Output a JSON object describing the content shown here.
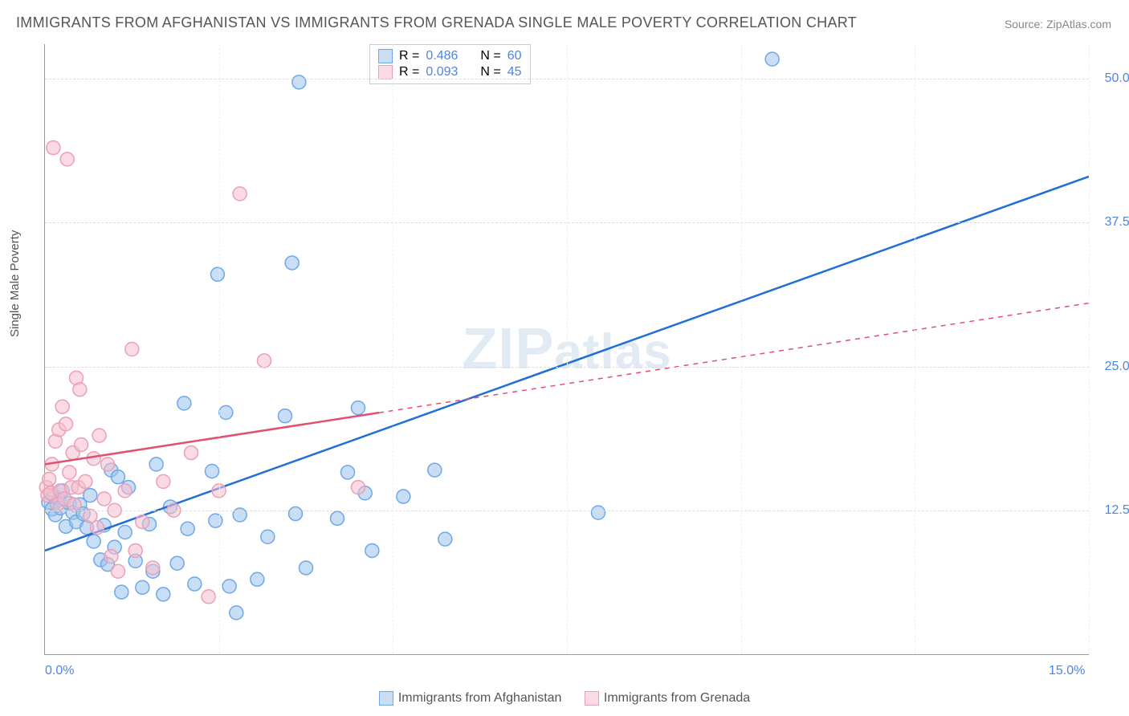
{
  "title": "IMMIGRANTS FROM AFGHANISTAN VS IMMIGRANTS FROM GRENADA SINGLE MALE POVERTY CORRELATION CHART",
  "source": "Source: ZipAtlas.com",
  "watermark": "ZIPatlas",
  "ylabel": "Single Male Poverty",
  "chart": {
    "type": "scatter",
    "xlim": [
      0,
      15
    ],
    "ylim": [
      0,
      53
    ],
    "xticks": [
      {
        "pos": 0,
        "label": "0.0%"
      },
      {
        "pos": 15,
        "label": "15.0%"
      }
    ],
    "xgrid": [
      2.5,
      5,
      7.5,
      10,
      12.5,
      15
    ],
    "yticks": [
      {
        "pos": 12.5,
        "label": "12.5%"
      },
      {
        "pos": 25,
        "label": "25.0%"
      },
      {
        "pos": 37.5,
        "label": "37.5%"
      },
      {
        "pos": 50,
        "label": "50.0%"
      }
    ],
    "tick_color": "#4a86e8",
    "grid_color": "#dddddd",
    "background_color": "#ffffff",
    "series": [
      {
        "key": "afghanistan",
        "label": "Immigrants from Afghanistan",
        "color_stroke": "#6fa8e8",
        "color_fill": "rgba(155,194,236,0.55)",
        "trend_color": "#1f6fd6",
        "trend_dash": "",
        "trend": {
          "x1": 0,
          "y1": 9,
          "x2": 15,
          "y2": 41.5,
          "solid_to_x": 15
        },
        "R": "0.486",
        "N": "60",
        "points": [
          [
            0.05,
            13.2
          ],
          [
            0.1,
            12.6
          ],
          [
            0.12,
            13.8
          ],
          [
            0.15,
            12.1
          ],
          [
            0.2,
            13.4
          ],
          [
            0.22,
            12.7
          ],
          [
            0.25,
            14.2
          ],
          [
            0.3,
            11.1
          ],
          [
            0.35,
            13.1
          ],
          [
            0.4,
            12.3
          ],
          [
            0.45,
            11.5
          ],
          [
            0.5,
            13.0
          ],
          [
            0.55,
            12.2
          ],
          [
            0.6,
            11.0
          ],
          [
            0.65,
            13.8
          ],
          [
            0.7,
            9.8
          ],
          [
            0.8,
            8.2
          ],
          [
            0.85,
            11.2
          ],
          [
            0.9,
            7.8
          ],
          [
            0.95,
            16.0
          ],
          [
            1.0,
            9.3
          ],
          [
            1.05,
            15.4
          ],
          [
            1.1,
            5.4
          ],
          [
            1.15,
            10.6
          ],
          [
            1.2,
            14.5
          ],
          [
            1.3,
            8.1
          ],
          [
            1.4,
            5.8
          ],
          [
            1.5,
            11.3
          ],
          [
            1.55,
            7.2
          ],
          [
            1.6,
            16.5
          ],
          [
            1.7,
            5.2
          ],
          [
            1.8,
            12.8
          ],
          [
            1.9,
            7.9
          ],
          [
            2.0,
            21.8
          ],
          [
            2.05,
            10.9
          ],
          [
            2.15,
            6.1
          ],
          [
            2.4,
            15.9
          ],
          [
            2.45,
            11.6
          ],
          [
            2.48,
            33.0
          ],
          [
            2.6,
            21.0
          ],
          [
            2.65,
            5.9
          ],
          [
            2.75,
            3.6
          ],
          [
            2.8,
            12.1
          ],
          [
            3.05,
            6.5
          ],
          [
            3.2,
            10.2
          ],
          [
            3.45,
            20.7
          ],
          [
            3.55,
            34.0
          ],
          [
            3.6,
            12.2
          ],
          [
            3.65,
            49.7
          ],
          [
            3.75,
            7.5
          ],
          [
            4.2,
            11.8
          ],
          [
            4.35,
            15.8
          ],
          [
            4.5,
            21.4
          ],
          [
            4.6,
            14.0
          ],
          [
            4.7,
            9.0
          ],
          [
            5.15,
            13.7
          ],
          [
            5.6,
            16.0
          ],
          [
            5.75,
            10.0
          ],
          [
            7.95,
            12.3
          ],
          [
            10.45,
            51.7
          ]
        ]
      },
      {
        "key": "grenada",
        "label": "Immigrants from Grenada",
        "color_stroke": "#eaa0b5",
        "color_fill": "rgba(245,190,205,0.55)",
        "trend_color": "#e05070",
        "trend_dash": "6 6",
        "trend": {
          "x1": 0,
          "y1": 16.5,
          "x2": 15,
          "y2": 30.5,
          "solid_to_x": 4.8
        },
        "R": "0.093",
        "N": "45",
        "points": [
          [
            0.02,
            14.5
          ],
          [
            0.04,
            13.8
          ],
          [
            0.06,
            15.2
          ],
          [
            0.08,
            14.0
          ],
          [
            0.1,
            16.5
          ],
          [
            0.12,
            44.0
          ],
          [
            0.15,
            18.5
          ],
          [
            0.18,
            13.0
          ],
          [
            0.2,
            19.5
          ],
          [
            0.22,
            14.2
          ],
          [
            0.25,
            21.5
          ],
          [
            0.28,
            13.5
          ],
          [
            0.3,
            20.0
          ],
          [
            0.32,
            43.0
          ],
          [
            0.35,
            15.8
          ],
          [
            0.38,
            14.5
          ],
          [
            0.4,
            17.5
          ],
          [
            0.42,
            13.0
          ],
          [
            0.45,
            24.0
          ],
          [
            0.48,
            14.5
          ],
          [
            0.5,
            23.0
          ],
          [
            0.52,
            18.2
          ],
          [
            0.58,
            15.0
          ],
          [
            0.65,
            12.0
          ],
          [
            0.7,
            17.0
          ],
          [
            0.75,
            11.0
          ],
          [
            0.78,
            19.0
          ],
          [
            0.85,
            13.5
          ],
          [
            0.9,
            16.5
          ],
          [
            0.95,
            8.5
          ],
          [
            1.0,
            12.5
          ],
          [
            1.05,
            7.2
          ],
          [
            1.15,
            14.2
          ],
          [
            1.25,
            26.5
          ],
          [
            1.3,
            9.0
          ],
          [
            1.4,
            11.5
          ],
          [
            1.55,
            7.5
          ],
          [
            1.7,
            15.0
          ],
          [
            1.85,
            12.5
          ],
          [
            2.1,
            17.5
          ],
          [
            2.35,
            5.0
          ],
          [
            2.5,
            14.2
          ],
          [
            2.8,
            40.0
          ],
          [
            3.15,
            25.5
          ],
          [
            4.5,
            14.5
          ]
        ]
      }
    ]
  },
  "legend_top_labels": {
    "R": "R =",
    "N": "N ="
  }
}
